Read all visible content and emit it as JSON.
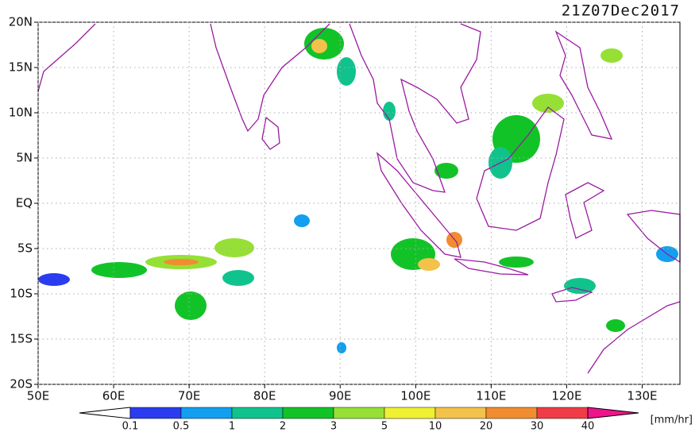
{
  "title": "21Z07Dec2017",
  "map": {
    "lonlim": [
      50,
      135
    ],
    "latlim": [
      -20,
      20
    ],
    "lon_ticks": [
      {
        "value": 50,
        "label": "50E"
      },
      {
        "value": 60,
        "label": "60E"
      },
      {
        "value": 70,
        "label": "70E"
      },
      {
        "value": 80,
        "label": "80E"
      },
      {
        "value": 90,
        "label": "90E"
      },
      {
        "value": 100,
        "label": "100E"
      },
      {
        "value": 110,
        "label": "110E"
      },
      {
        "value": 120,
        "label": "120E"
      },
      {
        "value": 130,
        "label": "130E"
      }
    ],
    "lat_ticks": [
      {
        "value": 20,
        "label": "20N"
      },
      {
        "value": 15,
        "label": "15N"
      },
      {
        "value": 10,
        "label": "10N"
      },
      {
        "value": 5,
        "label": "5N"
      },
      {
        "value": 0,
        "label": "EQ"
      },
      {
        "value": -5,
        "label": "5S"
      },
      {
        "value": -10,
        "label": "10S"
      },
      {
        "value": -15,
        "label": "15S"
      },
      {
        "value": -20,
        "label": "20S"
      }
    ],
    "grid": true
  },
  "colorbar": {
    "unit": "[mm/hr]",
    "levels": [
      0.1,
      0.5,
      1,
      2,
      3,
      5,
      10,
      20,
      30,
      40
    ],
    "colors": [
      "#2a3cf0",
      "#129ff0",
      "#10c38c",
      "#12c328",
      "#96e036",
      "#f0f032",
      "#f2c24a",
      "#f28c30",
      "#f03c46"
    ],
    "under_color": "#ffffff",
    "over_color": "#f0148c"
  }
}
